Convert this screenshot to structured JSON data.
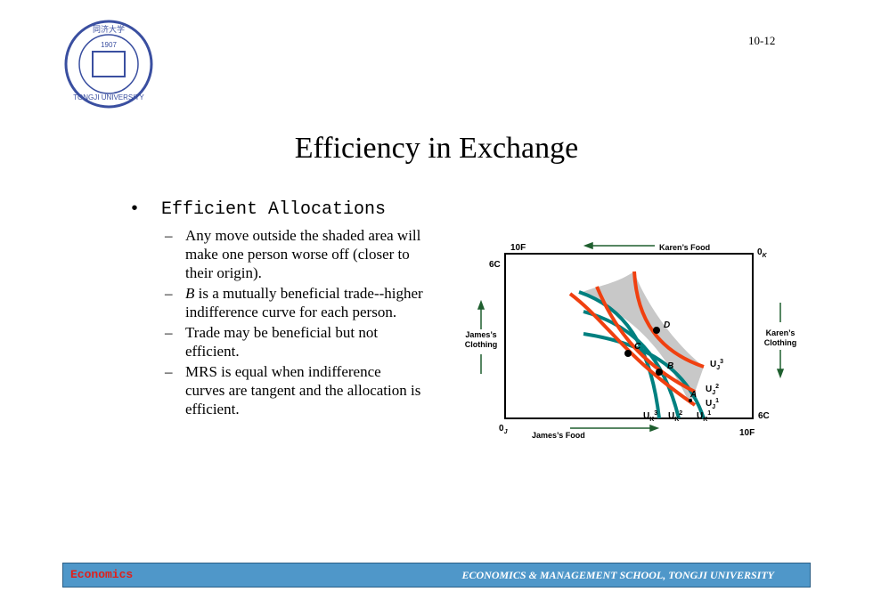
{
  "page_number": "10-12",
  "logo": {
    "chars": "同济大学",
    "year": "1907",
    "name": "TONGJI UNIVERSITY"
  },
  "title": "Efficiency in Exchange",
  "bullet": "Efficient Allocations",
  "items": [
    {
      "text": "Any move outside the shaded area will make one person worse off (closer to their origin)."
    },
    {
      "italic": "B",
      "text": " is a mutually beneficial trade--higher indifference curve for each person."
    },
    {
      "text": "Trade may be beneficial but not efficient."
    },
    {
      "text": "MRS is equal when indifference curves are tangent and the allocation is efficient."
    }
  ],
  "diagram": {
    "top_left": "10F",
    "top_axis": "Karen’s Food",
    "origin_k": {
      "base": "0",
      "sub": "K"
    },
    "left_top": "6C",
    "left_axis": [
      "James’s",
      "Clothing"
    ],
    "right_axis": [
      "Karen’s",
      "Clothing"
    ],
    "origin_j": {
      "base": "0",
      "sub": "J"
    },
    "bottom_axis": "James’s Food",
    "bottom_right": "10F",
    "right_bottom": "6C",
    "points": [
      "D",
      "C",
      "B",
      "A"
    ],
    "uj": [
      {
        "base": "U",
        "sub": "J",
        "sup": "3"
      },
      {
        "base": "U",
        "sub": "J",
        "sup": "2"
      },
      {
        "base": "U",
        "sub": "J",
        "sup": "1"
      }
    ],
    "uk": [
      {
        "base": "U",
        "sub": "K",
        "sup": "3"
      },
      {
        "base": "U",
        "sub": "K",
        "sup": "2"
      },
      {
        "base": "U",
        "sub": "K",
        "sup": "1"
      }
    ]
  },
  "footer": {
    "left": "Economics",
    "right": "ECONOMICS & MANAGEMENT SCHOOL, TONGJI UNIVERSITY"
  }
}
